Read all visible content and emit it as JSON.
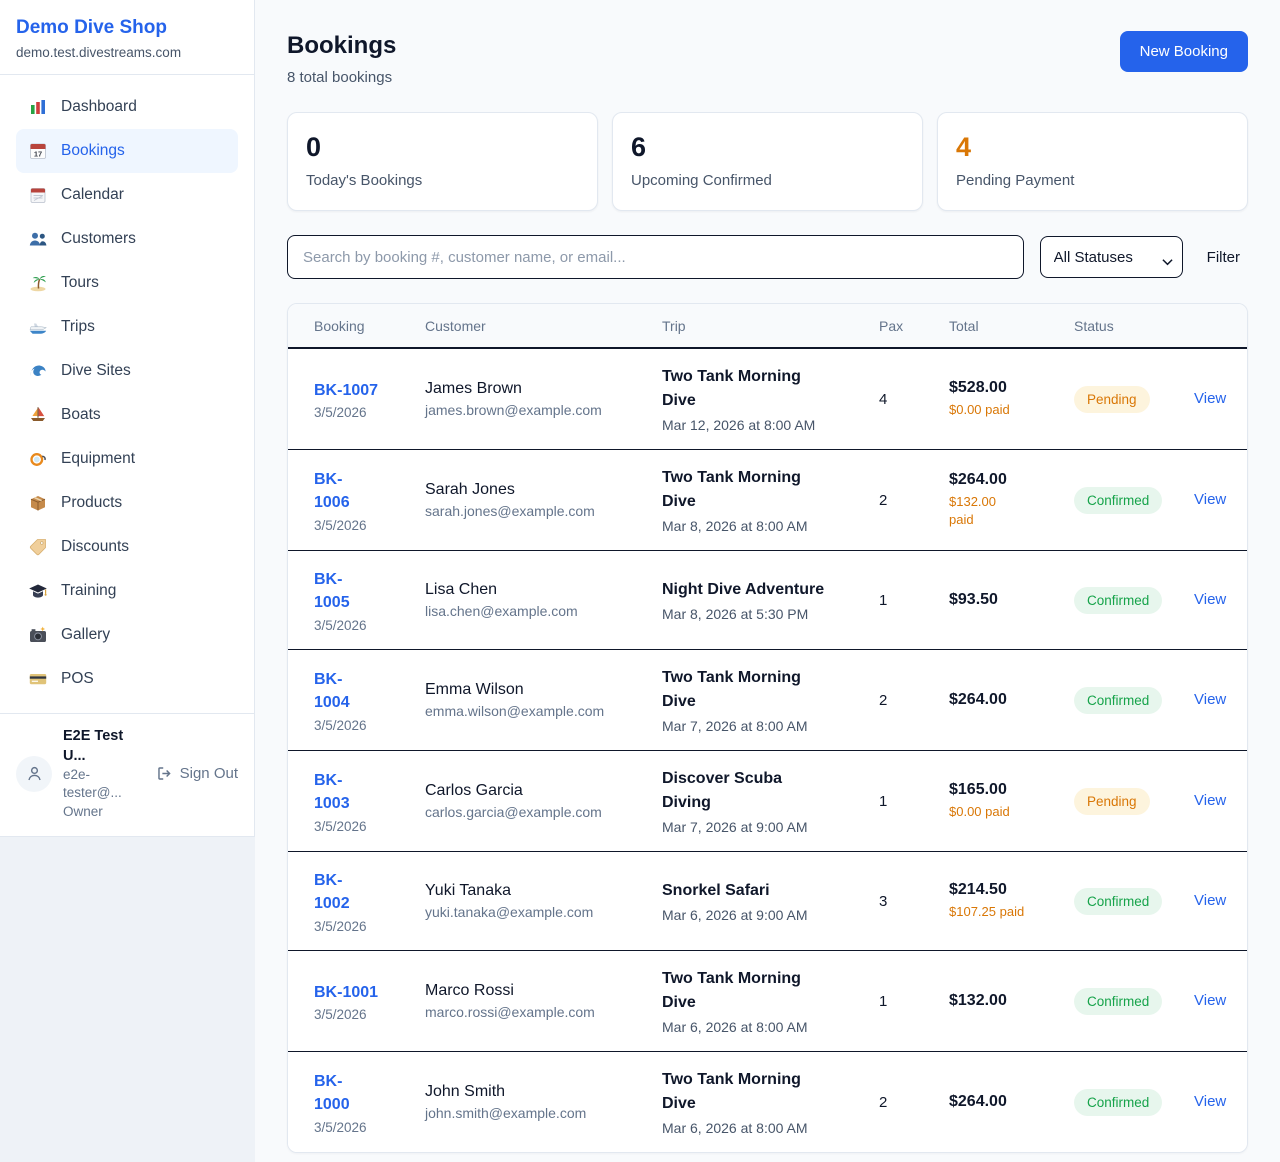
{
  "colors": {
    "accent_blue": "#2563eb",
    "pending_orange": "#d97706",
    "confirmed_green": "#16a34a"
  },
  "sidebar": {
    "brand": "Demo Dive Shop",
    "domain": "demo.test.divestreams.com",
    "items": [
      {
        "label": "Dashboard",
        "icon": "bar-chart-icon",
        "active": false
      },
      {
        "label": "Bookings",
        "icon": "bookings-calendar-icon",
        "active": true
      },
      {
        "label": "Calendar",
        "icon": "calendar-icon",
        "active": false
      },
      {
        "label": "Customers",
        "icon": "users-icon",
        "active": false
      },
      {
        "label": "Tours",
        "icon": "island-icon",
        "active": false
      },
      {
        "label": "Trips",
        "icon": "speedboat-icon",
        "active": false
      },
      {
        "label": "Dive Sites",
        "icon": "wave-icon",
        "active": false
      },
      {
        "label": "Boats",
        "icon": "sailboat-icon",
        "active": false
      },
      {
        "label": "Equipment",
        "icon": "dive-mask-icon",
        "active": false
      },
      {
        "label": "Products",
        "icon": "package-icon",
        "active": false
      },
      {
        "label": "Discounts",
        "icon": "tag-icon",
        "active": false
      },
      {
        "label": "Training",
        "icon": "graduation-cap-icon",
        "active": false
      },
      {
        "label": "Gallery",
        "icon": "camera-icon",
        "active": false
      },
      {
        "label": "POS",
        "icon": "credit-card-icon",
        "active": false
      }
    ],
    "user": {
      "name": "E2E Test U...",
      "email": "e2e-tester@...",
      "role": "Owner",
      "sign_out_label": "Sign Out"
    }
  },
  "header": {
    "title": "Bookings",
    "subtitle": "8 total bookings",
    "new_booking_label": "New Booking"
  },
  "stats": [
    {
      "value": "0",
      "label": "Today's Bookings"
    },
    {
      "value": "6",
      "label": "Upcoming Confirmed"
    },
    {
      "value": "4",
      "label": "Pending Payment"
    }
  ],
  "toolbar": {
    "search_placeholder": "Search by booking #, customer name, or email...",
    "status_filter_value": "All Statuses",
    "filter_label": "Filter"
  },
  "table": {
    "columns": [
      "Booking",
      "Customer",
      "Trip",
      "Pax",
      "Total",
      "Status"
    ],
    "rows": [
      {
        "id_lines": [
          "BK-1007"
        ],
        "date": "3/5/2026",
        "customer": "James Brown",
        "email": "james.brown@example.com",
        "trip_lines": [
          "Two Tank Morning",
          "Dive"
        ],
        "trip_datetime": "Mar 12, 2026 at 8:00 AM",
        "pax": "4",
        "total": "$528.00",
        "paid_lines": [
          "$0.00 paid"
        ],
        "status": "Pending",
        "action": "View"
      },
      {
        "id_lines": [
          "BK-",
          "1006"
        ],
        "date": "3/5/2026",
        "customer": "Sarah Jones",
        "email": "sarah.jones@example.com",
        "trip_lines": [
          "Two Tank Morning",
          "Dive"
        ],
        "trip_datetime": "Mar 8, 2026 at 8:00 AM",
        "pax": "2",
        "total": "$264.00",
        "paid_lines": [
          "$132.00",
          "paid"
        ],
        "status": "Confirmed",
        "action": "View"
      },
      {
        "id_lines": [
          "BK-",
          "1005"
        ],
        "date": "3/5/2026",
        "customer": "Lisa Chen",
        "email": "lisa.chen@example.com",
        "trip_lines": [
          "Night Dive Adventure"
        ],
        "trip_datetime": "Mar 8, 2026 at 5:30 PM",
        "pax": "1",
        "total": "$93.50",
        "paid_lines": null,
        "status": "Confirmed",
        "action": "View"
      },
      {
        "id_lines": [
          "BK-",
          "1004"
        ],
        "date": "3/5/2026",
        "customer": "Emma Wilson",
        "email": "emma.wilson@example.com",
        "trip_lines": [
          "Two Tank Morning",
          "Dive"
        ],
        "trip_datetime": "Mar 7, 2026 at 8:00 AM",
        "pax": "2",
        "total": "$264.00",
        "paid_lines": null,
        "status": "Confirmed",
        "action": "View"
      },
      {
        "id_lines": [
          "BK-",
          "1003"
        ],
        "date": "3/5/2026",
        "customer": "Carlos Garcia",
        "email": "carlos.garcia@example.com",
        "trip_lines": [
          "Discover Scuba",
          "Diving"
        ],
        "trip_datetime": "Mar 7, 2026 at 9:00 AM",
        "pax": "1",
        "total": "$165.00",
        "paid_lines": [
          "$0.00 paid"
        ],
        "status": "Pending",
        "action": "View"
      },
      {
        "id_lines": [
          "BK-",
          "1002"
        ],
        "date": "3/5/2026",
        "customer": "Yuki Tanaka",
        "email": "yuki.tanaka@example.com",
        "trip_lines": [
          "Snorkel Safari"
        ],
        "trip_datetime": "Mar 6, 2026 at 9:00 AM",
        "pax": "3",
        "total": "$214.50",
        "paid_lines": [
          "$107.25 paid"
        ],
        "status": "Confirmed",
        "action": "View"
      },
      {
        "id_lines": [
          "BK-1001"
        ],
        "date": "3/5/2026",
        "customer": "Marco Rossi",
        "email": "marco.rossi@example.com",
        "trip_lines": [
          "Two Tank Morning",
          "Dive"
        ],
        "trip_datetime": "Mar 6, 2026 at 8:00 AM",
        "pax": "1",
        "total": "$132.00",
        "paid_lines": null,
        "status": "Confirmed",
        "action": "View"
      },
      {
        "id_lines": [
          "BK-",
          "1000"
        ],
        "date": "3/5/2026",
        "customer": "John Smith",
        "email": "john.smith@example.com",
        "trip_lines": [
          "Two Tank Morning",
          "Dive"
        ],
        "trip_datetime": "Mar 6, 2026 at 8:00 AM",
        "pax": "2",
        "total": "$264.00",
        "paid_lines": null,
        "status": "Confirmed",
        "action": "View"
      }
    ]
  }
}
